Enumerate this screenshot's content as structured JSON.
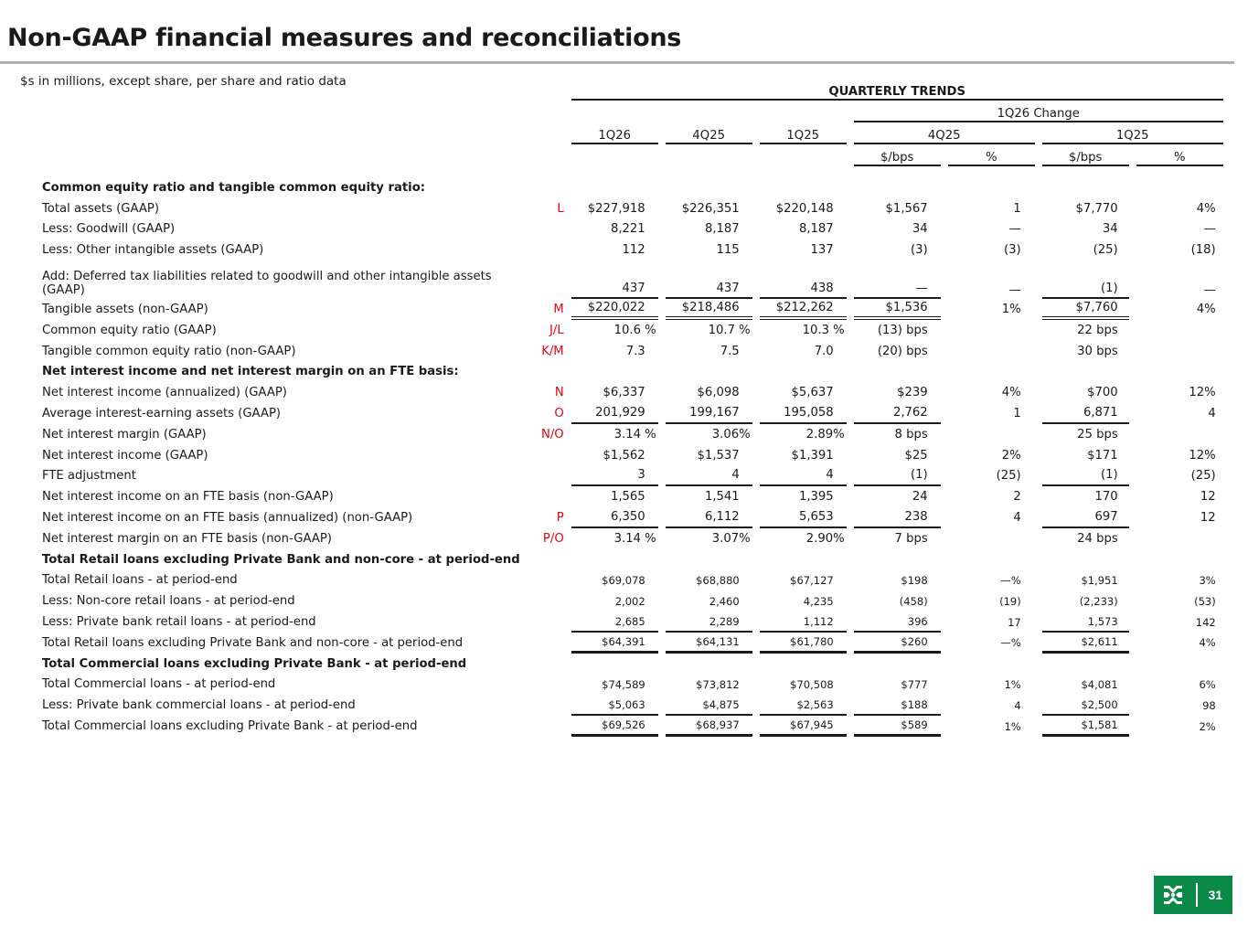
{
  "title": "Non-GAAP financial measures and reconciliations",
  "subtitle": "$s in millions, except share, per share and ratio data",
  "header": {
    "group": "QUARTERLY TRENDS",
    "change_group": "1Q26 Change",
    "periods": [
      "1Q26",
      "4Q25",
      "1Q25"
    ],
    "change_periods": [
      "4Q25",
      "1Q25"
    ],
    "change_cols": [
      "$/bps",
      "%",
      "$/bps",
      "%"
    ]
  },
  "rows": [
    {
      "label": "Common equity ratio and tangible common equity ratio:",
      "section": true
    },
    {
      "label": "Total assets (GAAP)",
      "ref": "L",
      "values": [
        "$227,918",
        "$226,351",
        "$220,148",
        "$1,567",
        "1",
        "$7,770",
        "4%"
      ]
    },
    {
      "label": "Less: Goodwill (GAAP)",
      "values": [
        "8,221",
        "8,187",
        "8,187",
        "34",
        "—",
        "34",
        "—"
      ]
    },
    {
      "label": "Less: Other intangible assets (GAAP)",
      "values": [
        "112",
        "115",
        "137",
        "(3)",
        "(3)",
        "(25)",
        "(18)"
      ]
    },
    {
      "label": "Add: Deferred tax liabilities related to goodwill and other intangible assets (GAAP)",
      "two_line": true,
      "rule": "single",
      "values": [
        "437",
        "437",
        "438",
        "—",
        "—",
        "(1)",
        "—"
      ]
    },
    {
      "label": "Tangible assets (non-GAAP)",
      "ref": "M",
      "rule": "double",
      "values": [
        "$220,022",
        "$218,486",
        "$212,262",
        "$1,536",
        "1%",
        "$7,760",
        "4%"
      ]
    },
    {
      "label": "Common equity ratio (GAAP)",
      "ref": "J/L",
      "values": [
        "10.6 %",
        "10.7 %",
        "10.3 %",
        "(13) bps",
        "",
        "22 bps",
        ""
      ]
    },
    {
      "label": "Tangible common equity ratio (non-GAAP)",
      "ref": "K/M",
      "values": [
        "7.3",
        "7.5",
        "7.0",
        "(20) bps",
        "",
        "30 bps",
        ""
      ]
    },
    {
      "label": "Net interest income and net interest margin on an FTE basis:",
      "section": true
    },
    {
      "label": "Net interest income (annualized) (GAAP)",
      "ref": "N",
      "values": [
        "$6,337",
        "$6,098",
        "$5,637",
        "$239",
        "4%",
        "$700",
        "12%"
      ]
    },
    {
      "label": "Average interest-earning assets (GAAP)",
      "ref": "O",
      "rule": "single",
      "values": [
        "201,929",
        "199,167",
        "195,058",
        "2,762",
        "1",
        "6,871",
        "4"
      ]
    },
    {
      "label": "Net interest margin (GAAP)",
      "ref": "N/O",
      "values": [
        "3.14 %",
        "3.06%",
        "2.89%",
        "8  bps",
        "",
        "25  bps",
        ""
      ]
    },
    {
      "label": "Net interest income (GAAP)",
      "values": [
        "$1,562",
        "$1,537",
        "$1,391",
        "$25",
        "2%",
        "$171",
        "12%"
      ]
    },
    {
      "label": "FTE adjustment",
      "rule": "single",
      "values": [
        "3",
        "4",
        "4",
        "(1)",
        "(25)",
        "(1)",
        "(25)"
      ]
    },
    {
      "label": "Net interest income on an FTE basis (non-GAAP)",
      "values": [
        "1,565",
        "1,541",
        "1,395",
        "24",
        "2",
        "170",
        "12"
      ]
    },
    {
      "label": "Net interest income on an FTE basis (annualized) (non-GAAP)",
      "ref": "P",
      "rule": "single",
      "values": [
        "6,350",
        "6,112",
        "5,653",
        "238",
        "4",
        "697",
        "12"
      ]
    },
    {
      "label": "Net interest margin on an FTE basis (non-GAAP)",
      "ref": "P/O",
      "values": [
        "3.14 %",
        "3.07%",
        "2.90%",
        "7  bps",
        "",
        "24  bps",
        ""
      ]
    },
    {
      "label": "Total Retail loans excluding Private Bank and non-core - at period-end",
      "section": true
    },
    {
      "label": "Total Retail loans - at period-end",
      "small": true,
      "values": [
        "$69,078",
        "$68,880",
        "$67,127",
        "$198",
        "—%",
        "$1,951",
        "3%"
      ]
    },
    {
      "label": "Less: Non-core retail loans - at period-end",
      "small": true,
      "values": [
        "2,002",
        "2,460",
        "4,235",
        "(458)",
        "(19)",
        "(2,233)",
        "(53)"
      ]
    },
    {
      "label": "Less: Private bank retail loans - at period-end",
      "small": true,
      "rule": "single",
      "values": [
        "2,685",
        "2,289",
        "1,112",
        "396",
        "17",
        "1,573",
        "142"
      ]
    },
    {
      "label": "Total Retail loans excluding Private Bank and non-core - at period-end",
      "small": true,
      "rule": "thick",
      "values": [
        "$64,391",
        "$64,131",
        "$61,780",
        "$260",
        "—%",
        "$2,611",
        "4%"
      ]
    },
    {
      "label": "Total Commercial loans excluding Private Bank - at period-end",
      "section": true
    },
    {
      "label": "Total Commercial loans - at period-end",
      "small": true,
      "values": [
        "$74,589",
        "$73,812",
        "$70,508",
        "$777",
        "1%",
        "$4,081",
        "6%"
      ]
    },
    {
      "label": "Less: Private bank commercial loans - at period-end",
      "small": true,
      "rule": "single",
      "values": [
        "$5,063",
        "$4,875",
        "$2,563",
        "$188",
        "4",
        "$2,500",
        "98"
      ]
    },
    {
      "label": "Total Commercial loans excluding Private Bank - at period-end",
      "small": true,
      "rule": "thick",
      "values": [
        "$69,526",
        "$68,937",
        "$67,945",
        "$589",
        "1%",
        "$1,581",
        "2%"
      ]
    }
  ],
  "footer": {
    "page_number": "31",
    "logo_color": "#0b8a47",
    "logo_icon": "citizens-logo-icon"
  },
  "colors": {
    "reference_letters": "#e30613",
    "title_rule": "#b0b0b0"
  }
}
